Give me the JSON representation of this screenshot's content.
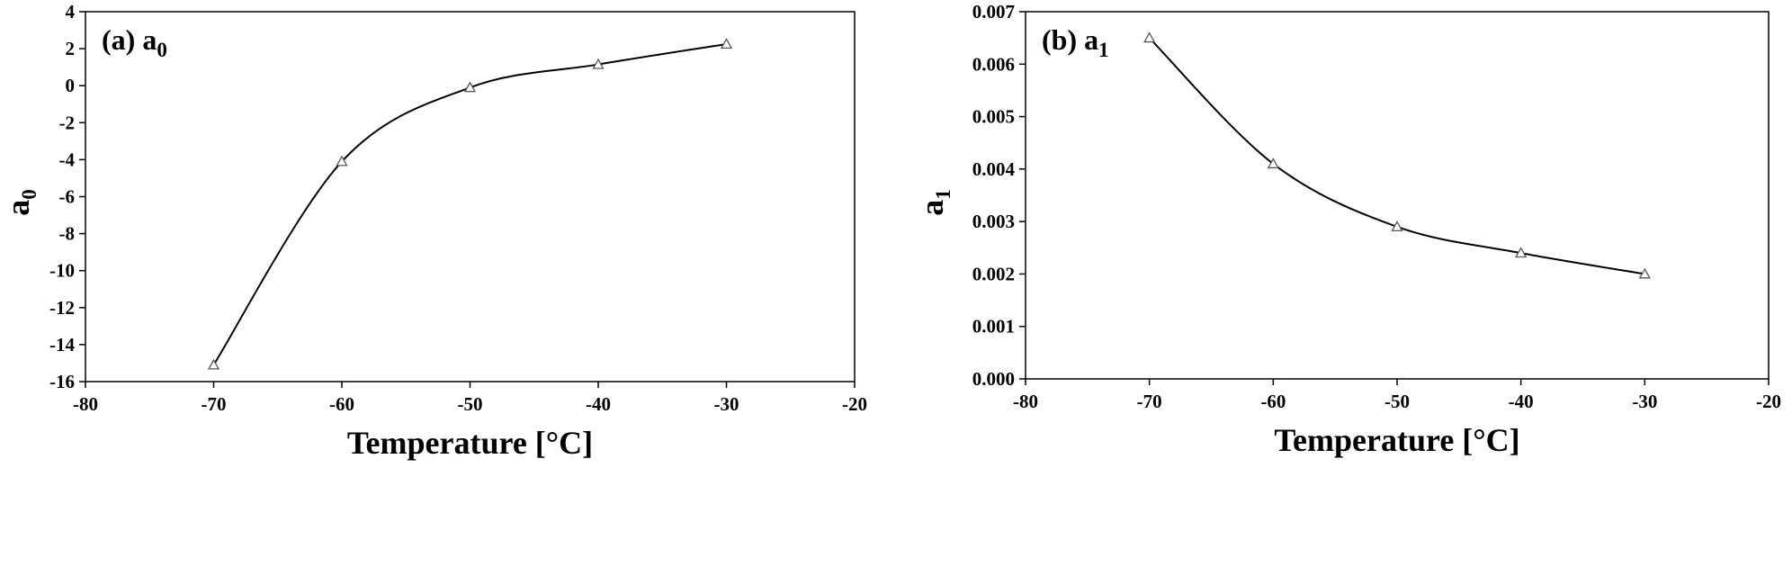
{
  "chart_data": [
    {
      "type": "scatter",
      "panel_label": "(a) a",
      "panel_label_sub": "0",
      "xlabel": "Temperature [°C]",
      "ylabel": "a",
      "ylabel_sub": "0",
      "xlim": [
        -80,
        -20
      ],
      "ylim": [
        -16,
        4
      ],
      "x_ticks": [
        -80,
        -70,
        -60,
        -50,
        -40,
        -30,
        -20
      ],
      "y_ticks": [
        4,
        2,
        0,
        -2,
        -4,
        -6,
        -8,
        -10,
        -12,
        -14,
        -16
      ],
      "marker": "open-triangle",
      "fit_line": "smooth curve",
      "series": [
        {
          "x": [
            -70,
            -60,
            -50,
            -40,
            -30
          ],
          "y": [
            -15.1,
            -4.1,
            -0.1,
            1.15,
            2.25
          ]
        }
      ]
    },
    {
      "type": "scatter",
      "panel_label": "(b) a",
      "panel_label_sub": "1",
      "xlabel": "Temperature [°C]",
      "ylabel": "a",
      "ylabel_sub": "1",
      "xlim": [
        -80,
        -20
      ],
      "ylim": [
        0,
        0.007
      ],
      "x_ticks": [
        -80,
        -70,
        -60,
        -50,
        -40,
        -30,
        -20
      ],
      "y_ticks": [
        0.007,
        0.006,
        0.005,
        0.004,
        0.003,
        0.002,
        0.001,
        0
      ],
      "marker": "open-triangle",
      "fit_line": "smooth curve",
      "series": [
        {
          "x": [
            -70,
            -60,
            -50,
            -40,
            -30
          ],
          "y": [
            0.0065,
            0.0041,
            0.0029,
            0.0024,
            0.002
          ]
        }
      ]
    }
  ]
}
